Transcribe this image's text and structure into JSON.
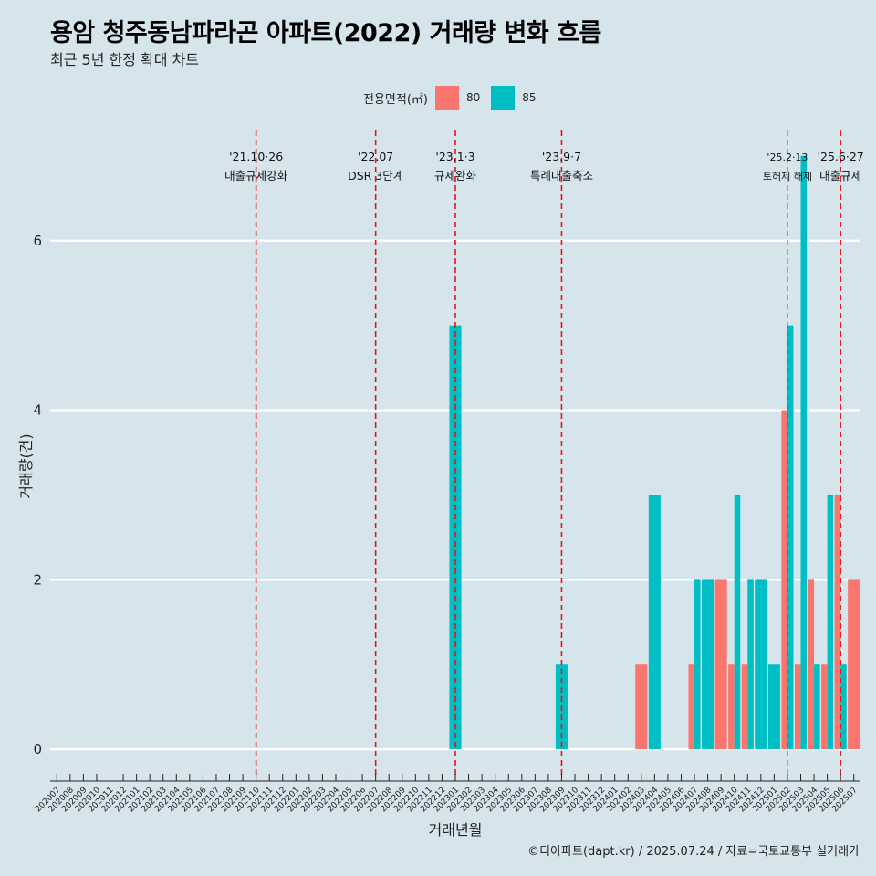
{
  "title": "용암 청주동남파라곤 아파트(2022) 거래량 변화 흐름",
  "subtitle": "최근 5년 한정 확대 차트",
  "legend": {
    "title": "전용면적(㎡)",
    "items": [
      {
        "label": "80",
        "color": "#f8766d"
      },
      {
        "label": "85",
        "color": "#00bfc4"
      }
    ]
  },
  "caption": "©디아파트(dapt.kr) / 2025.07.24 / 자료=국토교통부 실거래가",
  "chart_data": {
    "type": "bar",
    "xlabel": "거래년월",
    "ylabel": "거래량(건)",
    "ylim": [
      -0.3,
      7.3
    ],
    "yticks": [
      0,
      2,
      4,
      6
    ],
    "grid": true,
    "legend_position": "top",
    "categories": [
      "202007",
      "202008",
      "202009",
      "202010",
      "202011",
      "202012",
      "202101",
      "202102",
      "202103",
      "202104",
      "202105",
      "202106",
      "202107",
      "202108",
      "202109",
      "202110",
      "202111",
      "202112",
      "202201",
      "202202",
      "202203",
      "202204",
      "202205",
      "202206",
      "202207",
      "202208",
      "202209",
      "202210",
      "202211",
      "202212",
      "202301",
      "202302",
      "202303",
      "202304",
      "202305",
      "202306",
      "202307",
      "202308",
      "202309",
      "202310",
      "202311",
      "202312",
      "202401",
      "202402",
      "202403",
      "202404",
      "202405",
      "202406",
      "202407",
      "202408",
      "202409",
      "202410",
      "202411",
      "202412",
      "202501",
      "202502",
      "202503",
      "202504",
      "202505",
      "202506",
      "202507"
    ],
    "bars": [
      {
        "month": "202301",
        "series": "85",
        "value": 5
      },
      {
        "month": "202309",
        "series": "85",
        "value": 1
      },
      {
        "month": "202403",
        "series": "80",
        "value": 1
      },
      {
        "month": "202404",
        "series": "85",
        "value": 3
      },
      {
        "month": "202407",
        "series": "80",
        "value": 1
      },
      {
        "month": "202407",
        "series": "85",
        "value": 2
      },
      {
        "month": "202408",
        "series": "85",
        "value": 2
      },
      {
        "month": "202409",
        "series": "80",
        "value": 2
      },
      {
        "month": "202410",
        "series": "80",
        "value": 1
      },
      {
        "month": "202410",
        "series": "85",
        "value": 3
      },
      {
        "month": "202411",
        "series": "80",
        "value": 1
      },
      {
        "month": "202411",
        "series": "85",
        "value": 2
      },
      {
        "month": "202412",
        "series": "85",
        "value": 2
      },
      {
        "month": "202501",
        "series": "85",
        "value": 1
      },
      {
        "month": "202502",
        "series": "80",
        "value": 4
      },
      {
        "month": "202502",
        "series": "85",
        "value": 5
      },
      {
        "month": "202503",
        "series": "80",
        "value": 1
      },
      {
        "month": "202503",
        "series": "85",
        "value": 7
      },
      {
        "month": "202504",
        "series": "80",
        "value": 2
      },
      {
        "month": "202504",
        "series": "85",
        "value": 1
      },
      {
        "month": "202505",
        "series": "80",
        "value": 1
      },
      {
        "month": "202505",
        "series": "85",
        "value": 3
      },
      {
        "month": "202506",
        "series": "80",
        "value": 3
      },
      {
        "month": "202506",
        "series": "85",
        "value": 1
      },
      {
        "month": "202507",
        "series": "80",
        "value": 2
      }
    ],
    "events": [
      {
        "month": "202110",
        "date": "'21.10·26",
        "label": "대출규제강화"
      },
      {
        "month": "202207",
        "date": "'22.07",
        "label": "DSR 3단계"
      },
      {
        "month": "202301",
        "date": "'23.1·3",
        "label": "규제완화"
      },
      {
        "month": "202309",
        "date": "'23.9·7",
        "label": "특례대출축소"
      },
      {
        "month": "202502",
        "date": "'25.2·13",
        "label": "토허제 해제"
      },
      {
        "month": "202506",
        "date": "'25.6·27",
        "label": "대출규제"
      }
    ]
  }
}
